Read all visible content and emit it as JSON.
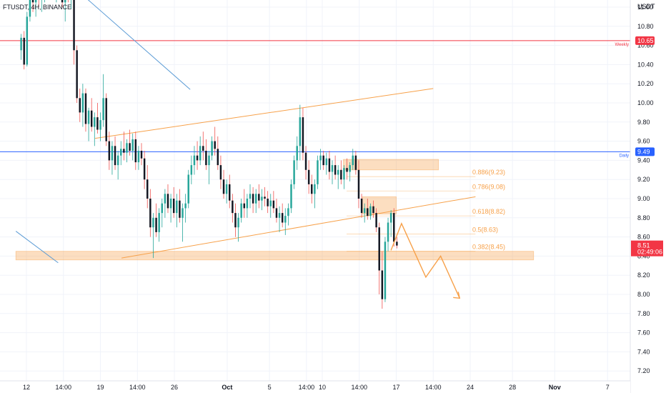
{
  "chart_data": {
    "type": "candlestick",
    "symbol": "FTUSDT, 4H, BINANCE",
    "currency": "USDT",
    "ylim": [
      7.1,
      11.4
    ],
    "y_ticks": [
      "11.00",
      "10.80",
      "10.60",
      "10.40",
      "10.20",
      "10.00",
      "9.80",
      "9.60",
      "9.40",
      "9.20",
      "9.00",
      "8.80",
      "8.60",
      "8.40",
      "8.20",
      "8.00",
      "7.80",
      "7.60",
      "7.40",
      "7.20"
    ],
    "x_labels": [
      "12",
      "14:00",
      "19",
      "14:00",
      "26",
      "Oct",
      "5",
      "14:00",
      "10",
      "14:00",
      "17",
      "14:00",
      "24",
      "28",
      "Nov",
      "7"
    ],
    "x_label_days": [
      0,
      3.5,
      7,
      10.5,
      14,
      19,
      23,
      26.5,
      28,
      31.5,
      35,
      38.5,
      42,
      46,
      50,
      55
    ],
    "price_levels": [
      {
        "label": "Weekly",
        "value": 10.65,
        "value_text": "10.65",
        "color": "#f23645"
      },
      {
        "label": "Daily",
        "value": 9.49,
        "value_text": "9.49",
        "color": "#2962ff"
      }
    ],
    "last_price": {
      "value": 8.51,
      "value_text": "8.51",
      "countdown": "02:49:06",
      "color": "#f23645"
    },
    "fib_levels": [
      {
        "label": "0.886(9.23)",
        "value": 9.23
      },
      {
        "label": "0.786(9.08)",
        "value": 9.08
      },
      {
        "label": "0.618(8.82)",
        "value": 8.82
      },
      {
        "label": "0.5(8.63)",
        "value": 8.63
      },
      {
        "label": "0.382(8.45)",
        "value": 8.45
      }
    ],
    "zones": [
      {
        "name": "support",
        "day_start": -1,
        "day_end": 48,
        "top": 8.45,
        "bottom": 8.36
      },
      {
        "name": "upper-box",
        "day_start": 30,
        "day_end": 39,
        "top": 9.41,
        "bottom": 9.3
      },
      {
        "name": "mid-box",
        "day_start": 31.8,
        "day_end": 35,
        "top": 9.02,
        "bottom": 8.84
      }
    ],
    "trendlines": [
      {
        "name": "channel-top",
        "color": "#f7a14a",
        "from": [
          6.5,
          9.63
        ],
        "to": [
          38.5,
          10.15
        ]
      },
      {
        "name": "channel-bottom",
        "color": "#f7a14a",
        "from": [
          9,
          8.38
        ],
        "to": [
          42.5,
          9.02
        ]
      },
      {
        "name": "falling-line",
        "color": "#5b9bd5",
        "from": [
          2.5,
          11.4
        ],
        "to": [
          15.5,
          10.14
        ]
      },
      {
        "name": "lower-left-line",
        "color": "#5b9bd5",
        "from": [
          -1,
          8.66
        ],
        "to": [
          3,
          8.33
        ]
      }
    ],
    "projection": {
      "color": "#f7a14a",
      "points": [
        [
          34.5,
          8.46
        ],
        [
          35.5,
          8.74
        ],
        [
          37.8,
          8.18
        ],
        [
          39.2,
          8.4
        ],
        [
          41,
          7.96
        ]
      ]
    },
    "candles_4h": [
      [
        10.55,
        10.72,
        10.45,
        10.68
      ],
      [
        10.68,
        10.75,
        10.35,
        10.4
      ],
      [
        10.4,
        10.95,
        10.38,
        10.9
      ],
      [
        10.9,
        11.2,
        10.85,
        11.1
      ],
      [
        11.1,
        11.3,
        10.95,
        11.05
      ],
      [
        11.05,
        11.25,
        10.9,
        11.18
      ],
      [
        11.18,
        11.35,
        11.0,
        11.08
      ],
      [
        11.08,
        11.2,
        10.95,
        11.12
      ],
      [
        11.12,
        11.3,
        11.05,
        11.25
      ],
      [
        11.25,
        11.38,
        11.15,
        11.2
      ],
      [
        11.2,
        11.32,
        11.1,
        11.28
      ],
      [
        11.28,
        11.35,
        11.12,
        11.16
      ],
      [
        11.16,
        11.3,
        11.05,
        11.22
      ],
      [
        11.22,
        11.4,
        11.1,
        11.3
      ],
      [
        11.3,
        11.38,
        11.0,
        11.05
      ],
      [
        11.05,
        11.2,
        10.85,
        11.18
      ],
      [
        11.18,
        11.3,
        11.05,
        11.1
      ],
      [
        11.1,
        11.25,
        10.98,
        11.2
      ],
      [
        11.2,
        11.3,
        10.4,
        10.55
      ],
      [
        10.55,
        10.6,
        10.0,
        10.05
      ],
      [
        10.05,
        10.15,
        9.8,
        9.9
      ],
      [
        9.9,
        10.2,
        9.75,
        10.1
      ],
      [
        10.1,
        10.15,
        9.7,
        9.78
      ],
      [
        9.78,
        9.95,
        9.6,
        9.92
      ],
      [
        9.92,
        10.05,
        9.7,
        9.75
      ],
      [
        9.75,
        9.9,
        9.55,
        9.85
      ],
      [
        9.85,
        10.0,
        9.68,
        9.72
      ],
      [
        9.72,
        9.9,
        9.6,
        9.82
      ],
      [
        9.82,
        10.3,
        9.75,
        10.05
      ],
      [
        10.05,
        10.1,
        9.55,
        9.6
      ],
      [
        9.6,
        9.7,
        9.3,
        9.4
      ],
      [
        9.4,
        9.6,
        9.25,
        9.55
      ],
      [
        9.55,
        9.65,
        9.3,
        9.35
      ],
      [
        9.35,
        9.5,
        9.2,
        9.45
      ],
      [
        9.45,
        9.6,
        9.35,
        9.52
      ],
      [
        9.52,
        9.7,
        9.4,
        9.48
      ],
      [
        9.48,
        9.62,
        9.38,
        9.58
      ],
      [
        9.58,
        9.72,
        9.45,
        9.5
      ],
      [
        9.5,
        9.68,
        9.4,
        9.62
      ],
      [
        9.62,
        9.7,
        9.3,
        9.38
      ],
      [
        9.38,
        9.55,
        9.3,
        9.5
      ],
      [
        9.5,
        9.58,
        9.35,
        9.42
      ],
      [
        9.42,
        9.5,
        9.1,
        9.2
      ],
      [
        9.2,
        9.35,
        8.9,
        9.0
      ],
      [
        9.0,
        9.1,
        8.6,
        8.7
      ],
      [
        8.7,
        8.85,
        8.38,
        8.8
      ],
      [
        8.8,
        8.95,
        8.6,
        8.65
      ],
      [
        8.65,
        8.9,
        8.55,
        8.85
      ],
      [
        8.85,
        9.0,
        8.7,
        8.95
      ],
      [
        8.95,
        9.1,
        8.8,
        9.05
      ],
      [
        9.05,
        9.15,
        8.85,
        8.9
      ],
      [
        8.9,
        9.05,
        8.75,
        9.0
      ],
      [
        9.0,
        9.12,
        8.8,
        8.85
      ],
      [
        8.85,
        9.05,
        8.7,
        8.98
      ],
      [
        8.98,
        9.1,
        8.75,
        8.8
      ],
      [
        8.8,
        8.95,
        8.55,
        8.9
      ],
      [
        8.9,
        9.05,
        8.75,
        8.95
      ],
      [
        8.95,
        9.3,
        8.9,
        9.25
      ],
      [
        9.25,
        9.45,
        9.15,
        9.35
      ],
      [
        9.35,
        9.55,
        9.25,
        9.45
      ],
      [
        9.45,
        9.6,
        9.3,
        9.4
      ],
      [
        9.4,
        9.65,
        9.35,
        9.55
      ],
      [
        9.55,
        9.7,
        9.4,
        9.5
      ],
      [
        9.5,
        9.62,
        9.3,
        9.35
      ],
      [
        9.35,
        9.5,
        9.15,
        9.45
      ],
      [
        9.45,
        9.65,
        9.4,
        9.6
      ],
      [
        9.6,
        9.75,
        9.45,
        9.52
      ],
      [
        9.52,
        9.65,
        9.3,
        9.35
      ],
      [
        9.35,
        9.45,
        9.1,
        9.2
      ],
      [
        9.2,
        9.3,
        9.0,
        9.05
      ],
      [
        9.05,
        9.2,
        8.95,
        9.15
      ],
      [
        9.15,
        9.25,
        8.9,
        8.98
      ],
      [
        8.98,
        9.05,
        8.75,
        8.85
      ],
      [
        8.85,
        8.95,
        8.6,
        8.7
      ],
      [
        8.7,
        8.85,
        8.55,
        8.8
      ],
      [
        8.8,
        9.0,
        8.75,
        8.95
      ],
      [
        8.95,
        9.1,
        8.8,
        8.9
      ],
      [
        8.9,
        9.05,
        8.8,
        9.0
      ],
      [
        9.0,
        9.15,
        8.9,
        9.05
      ],
      [
        9.05,
        9.12,
        8.85,
        8.95
      ],
      [
        8.95,
        9.1,
        8.85,
        9.05
      ],
      [
        9.05,
        9.15,
        8.9,
        8.98
      ],
      [
        8.98,
        9.1,
        8.88,
        9.02
      ],
      [
        9.02,
        9.12,
        8.92,
        9.0
      ],
      [
        9.0,
        9.08,
        8.85,
        8.92
      ],
      [
        8.92,
        9.05,
        8.8,
        8.98
      ],
      [
        8.98,
        9.08,
        8.85,
        8.9
      ],
      [
        8.9,
        9.0,
        8.75,
        8.8
      ],
      [
        8.8,
        8.92,
        8.65,
        8.85
      ],
      [
        8.85,
        8.95,
        8.7,
        8.75
      ],
      [
        8.75,
        8.9,
        8.62,
        8.82
      ],
      [
        8.82,
        8.95,
        8.72,
        8.9
      ],
      [
        8.9,
        9.2,
        8.85,
        9.15
      ],
      [
        9.15,
        9.45,
        9.1,
        9.4
      ],
      [
        9.4,
        9.65,
        9.3,
        9.55
      ],
      [
        9.55,
        9.98,
        9.4,
        9.85
      ],
      [
        9.85,
        9.95,
        9.4,
        9.48
      ],
      [
        9.48,
        9.55,
        9.2,
        9.3
      ],
      [
        9.3,
        9.4,
        9.05,
        9.15
      ],
      [
        9.15,
        9.25,
        8.95,
        9.05
      ],
      [
        9.05,
        9.2,
        8.9,
        9.15
      ],
      [
        9.15,
        9.45,
        9.1,
        9.4
      ],
      [
        9.4,
        9.52,
        9.3,
        9.45
      ],
      [
        9.45,
        9.5,
        9.3,
        9.35
      ],
      [
        9.35,
        9.48,
        9.25,
        9.42
      ],
      [
        9.42,
        9.5,
        9.2,
        9.28
      ],
      [
        9.28,
        9.4,
        9.15,
        9.35
      ],
      [
        9.35,
        9.45,
        9.2,
        9.25
      ],
      [
        9.25,
        9.35,
        9.1,
        9.3
      ],
      [
        9.3,
        9.4,
        9.15,
        9.2
      ],
      [
        9.2,
        9.35,
        9.1,
        9.32
      ],
      [
        9.32,
        9.42,
        9.2,
        9.28
      ],
      [
        9.28,
        9.38,
        9.18,
        9.35
      ],
      [
        9.35,
        9.52,
        9.3,
        9.45
      ],
      [
        9.45,
        9.5,
        9.25,
        9.3
      ],
      [
        9.3,
        9.4,
        8.9,
        9.0
      ],
      [
        9.0,
        9.05,
        8.8,
        8.85
      ],
      [
        8.85,
        8.95,
        8.75,
        8.9
      ],
      [
        8.9,
        9.0,
        8.78,
        8.82
      ],
      [
        8.82,
        8.95,
        8.78,
        8.92
      ],
      [
        8.92,
        8.98,
        8.8,
        8.85
      ],
      [
        8.85,
        8.9,
        8.65,
        8.7
      ],
      [
        8.7,
        8.75,
        8.0,
        8.25
      ],
      [
        8.25,
        8.45,
        7.85,
        7.95
      ],
      [
        7.95,
        8.6,
        7.92,
        8.55
      ],
      [
        8.55,
        8.8,
        8.45,
        8.75
      ],
      [
        8.75,
        8.88,
        8.6,
        8.85
      ],
      [
        8.85,
        8.9,
        8.5,
        8.55
      ],
      [
        8.55,
        8.6,
        8.48,
        8.51
      ]
    ],
    "candles_start_day": -0.5,
    "candle_day_step": 0.2778
  }
}
